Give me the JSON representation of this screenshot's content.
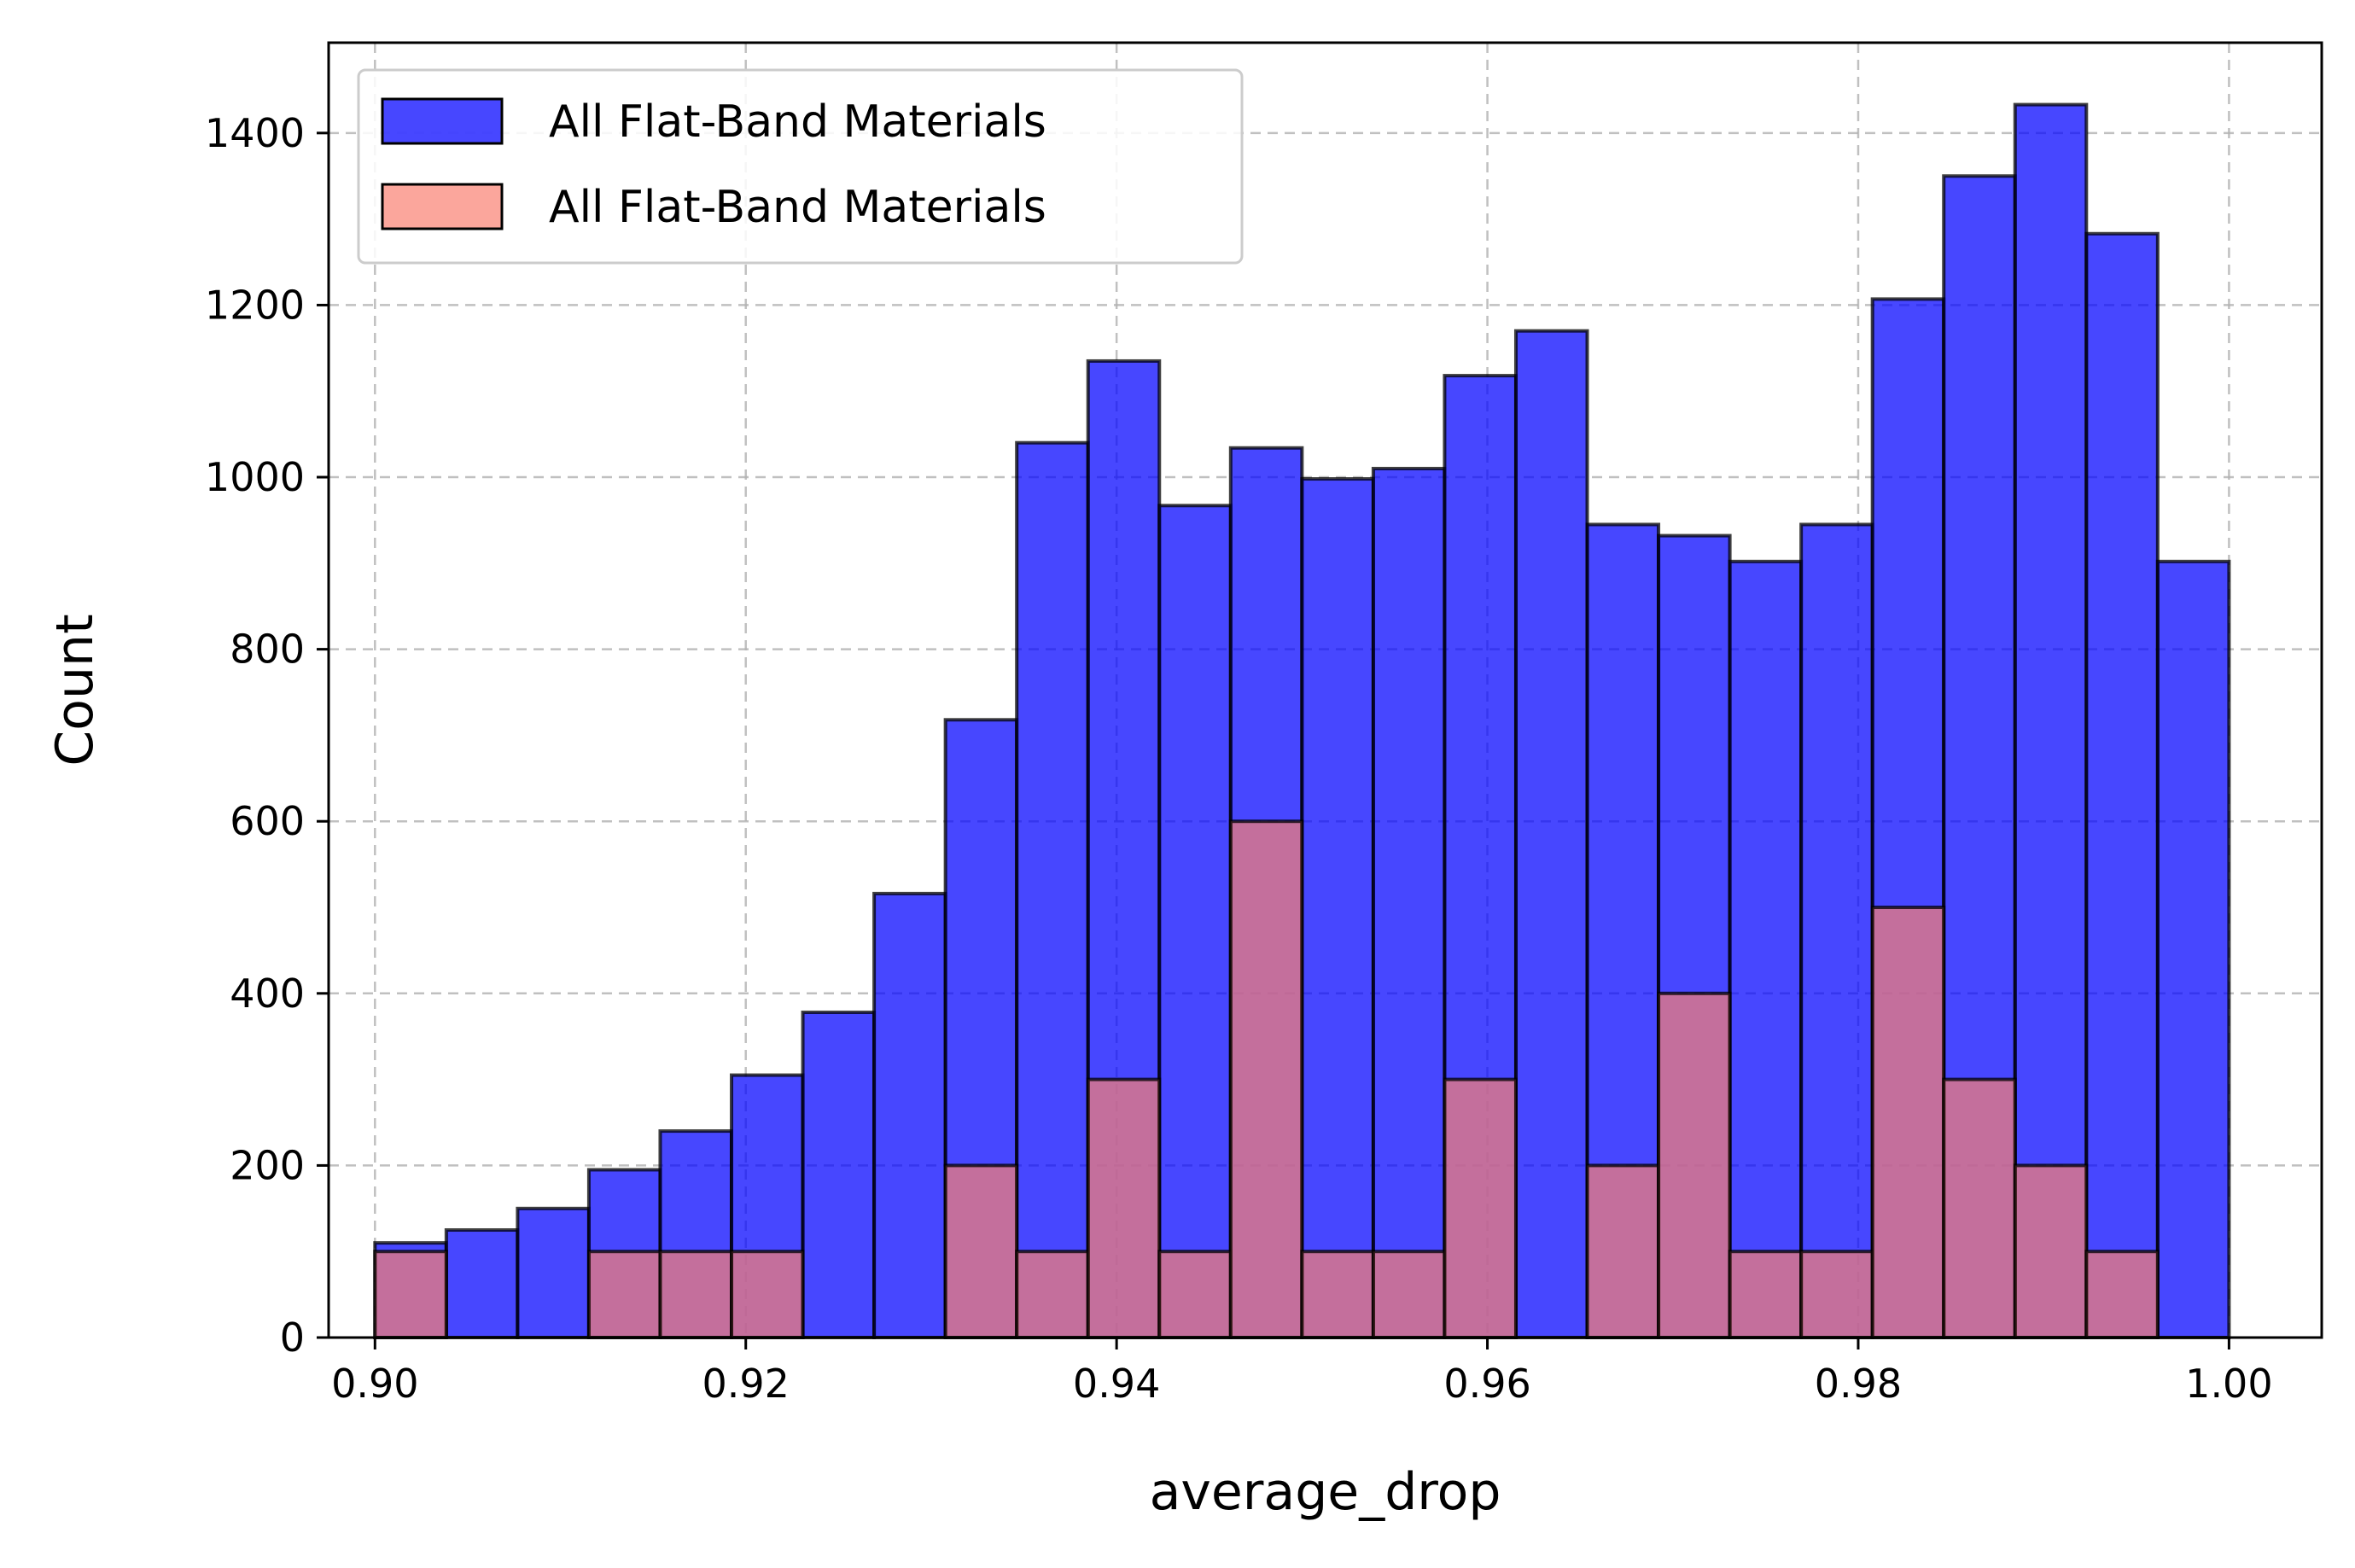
{
  "chart_data": {
    "type": "bar",
    "title": "",
    "xlabel": "average_drop",
    "ylabel": "Count",
    "xlim": [
      0.8975,
      1.005
    ],
    "ylim": [
      0,
      1505
    ],
    "xticks": [
      0.9,
      0.92,
      0.94,
      0.96,
      0.98,
      1.0
    ],
    "xtick_labels": [
      "0.90",
      "0.92",
      "0.94",
      "0.96",
      "0.98",
      "1.00"
    ],
    "yticks": [
      0,
      200,
      400,
      600,
      800,
      1000,
      1200,
      1400
    ],
    "ytick_labels": [
      "0",
      "200",
      "400",
      "600",
      "800",
      "1000",
      "1200",
      "1400"
    ],
    "grid": true,
    "legend_position": "top-left",
    "bins": {
      "start": 0.9,
      "end": 1.0,
      "count": 26
    },
    "series": [
      {
        "name": "All Flat-Band Materials",
        "color": "#0000ff",
        "alpha": 0.72,
        "values": [
          110,
          125,
          150,
          195,
          240,
          305,
          378,
          516,
          718,
          1040,
          1135,
          967,
          1034,
          998,
          1010,
          1118,
          1170,
          945,
          932,
          902,
          945,
          1207,
          1350,
          1433,
          1283,
          902
        ]
      },
      {
        "name": "All Flat-Band Materials",
        "color": "#fa8072",
        "alpha": 0.7,
        "values": [
          100,
          0,
          0,
          100,
          100,
          100,
          0,
          0,
          200,
          100,
          300,
          100,
          600,
          100,
          100,
          300,
          0,
          200,
          400,
          100,
          100,
          500,
          300,
          200,
          100,
          0
        ]
      }
    ]
  }
}
